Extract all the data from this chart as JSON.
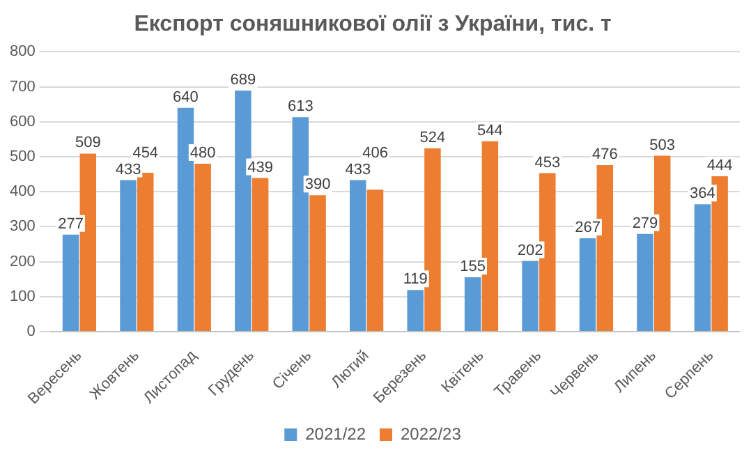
{
  "chart_data": {
    "type": "bar",
    "title": "Експорт соняшникової олії з України, тис. т",
    "categories": [
      "Вересень",
      "Жовтень",
      "Листопад",
      "Грудень",
      "Січень",
      "Лютий",
      "Березень",
      "Квітень",
      "Травень",
      "Червень",
      "Липень",
      "Серпень"
    ],
    "series": [
      {
        "name": "2021/22",
        "color": "#5b9bd5",
        "values": [
          277,
          433,
          640,
          689,
          613,
          433,
          119,
          155,
          202,
          267,
          279,
          364
        ]
      },
      {
        "name": "2022/23",
        "color": "#ed7d31",
        "values": [
          509,
          454,
          480,
          439,
          390,
          406,
          524,
          544,
          453,
          476,
          503,
          444
        ]
      }
    ],
    "ylim": [
      0,
      800
    ],
    "yticks": [
      0,
      100,
      200,
      300,
      400,
      500,
      600,
      700,
      800
    ],
    "grid": "y",
    "legend": "bottom",
    "data_labels": true
  }
}
